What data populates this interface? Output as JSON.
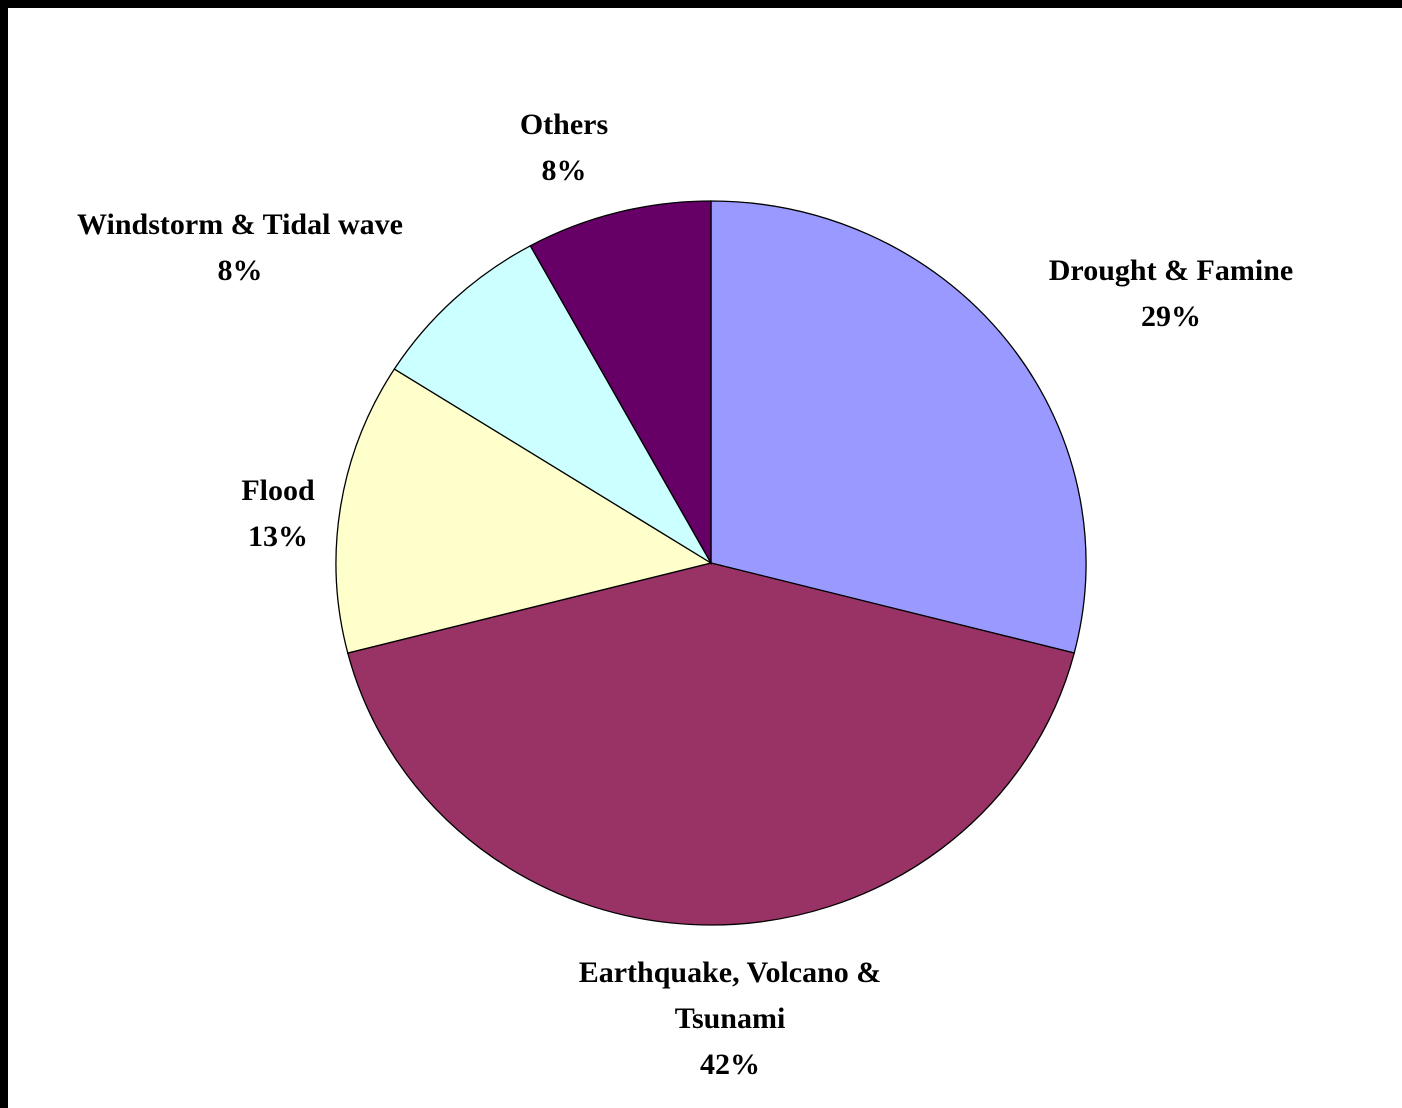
{
  "chart_data": {
    "type": "pie",
    "title": "",
    "start": "12 o'clock",
    "direction": "clockwise",
    "slices": [
      {
        "label": "Drought & Famine",
        "label_lines": [
          "Drought & Famine"
        ],
        "value": 29,
        "value_label": "29%",
        "color": "#9999ff"
      },
      {
        "label": "Earthquake, Volcano & Tsunami",
        "label_lines": [
          "Earthquake, Volcano &",
          "Tsunami"
        ],
        "value": 42,
        "value_label": "42%",
        "color": "#993366"
      },
      {
        "label": "Flood",
        "label_lines": [
          "Flood"
        ],
        "value": 13,
        "value_label": "13%",
        "color": "#ffffcc"
      },
      {
        "label": "Windstorm & Tidal wave",
        "label_lines": [
          "Windstorm & Tidal wave"
        ],
        "value": 8,
        "value_label": "8%",
        "color": "#ccffff"
      },
      {
        "label": "Others",
        "label_lines": [
          "Others"
        ],
        "value": 8,
        "value_label": "8%",
        "color": "#660066"
      }
    ]
  }
}
